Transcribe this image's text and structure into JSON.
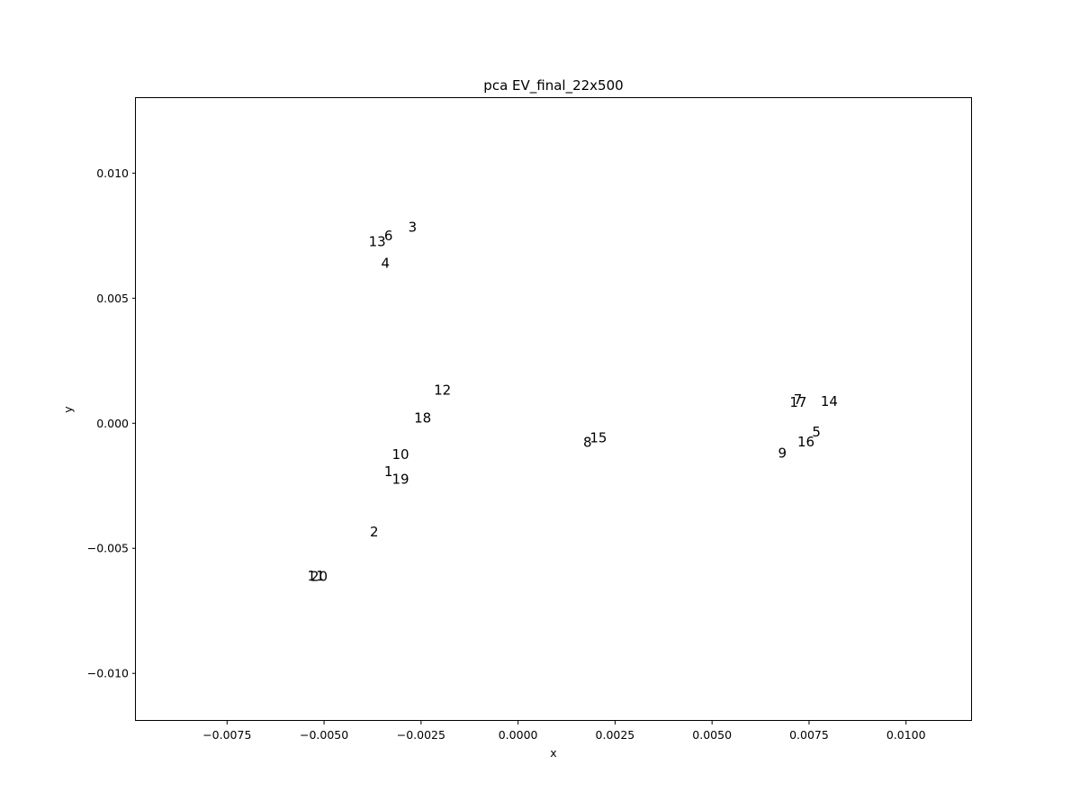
{
  "chart_data": {
    "type": "scatter",
    "title": "pca EV_final_22x500",
    "xlabel": "x",
    "ylabel": "y",
    "xlim": [
      -0.00985,
      0.0117
    ],
    "ylim": [
      -0.0119,
      0.013
    ],
    "grid": false,
    "legend": "none",
    "x_ticks": [
      {
        "value": -0.0075,
        "label": "−0.0075"
      },
      {
        "value": -0.005,
        "label": "−0.0050"
      },
      {
        "value": -0.0025,
        "label": "−0.0025"
      },
      {
        "value": 0.0,
        "label": "0.0000"
      },
      {
        "value": 0.0025,
        "label": "0.0025"
      },
      {
        "value": 0.005,
        "label": "0.0050"
      },
      {
        "value": 0.0075,
        "label": "0.0075"
      },
      {
        "value": 0.01,
        "label": "0.0100"
      }
    ],
    "y_ticks": [
      {
        "value": -0.01,
        "label": "−0.010"
      },
      {
        "value": -0.005,
        "label": "−0.005"
      },
      {
        "value": 0.0,
        "label": "0.000"
      },
      {
        "value": 0.005,
        "label": "0.005"
      },
      {
        "value": 0.01,
        "label": "0.010"
      }
    ],
    "points": [
      {
        "label": "1",
        "x": -0.00345,
        "y": -0.00212
      },
      {
        "label": "2",
        "x": -0.00382,
        "y": -0.00453
      },
      {
        "label": "3",
        "x": -0.00283,
        "y": 0.00766
      },
      {
        "label": "4",
        "x": -0.00353,
        "y": 0.00622
      },
      {
        "label": "5",
        "x": 0.00758,
        "y": -0.00053
      },
      {
        "label": "6",
        "x": -0.00345,
        "y": 0.00731
      },
      {
        "label": "7",
        "x": 0.0071,
        "y": 0.00077
      },
      {
        "label": "8",
        "x": 0.00168,
        "y": -0.00095
      },
      {
        "label": "9",
        "x": 0.0067,
        "y": -0.00137
      },
      {
        "label": "10",
        "x": -0.00325,
        "y": -0.00143
      },
      {
        "label": "11",
        "x": -0.00543,
        "y": -0.00628
      },
      {
        "label": "12",
        "x": -0.00217,
        "y": 0.00115
      },
      {
        "label": "13",
        "x": -0.00385,
        "y": 0.00708
      },
      {
        "label": "14",
        "x": 0.0078,
        "y": 0.0007
      },
      {
        "label": "15",
        "x": 0.00185,
        "y": -0.00077
      },
      {
        "label": "16",
        "x": 0.0072,
        "y": -0.00093
      },
      {
        "label": "17",
        "x": 0.007,
        "y": 0.00065
      },
      {
        "label": "18",
        "x": -0.00268,
        "y": 2e-05
      },
      {
        "label": "19",
        "x": -0.00325,
        "y": -0.00242
      },
      {
        "label": "20",
        "x": -0.00535,
        "y": -0.0063
      }
    ]
  }
}
